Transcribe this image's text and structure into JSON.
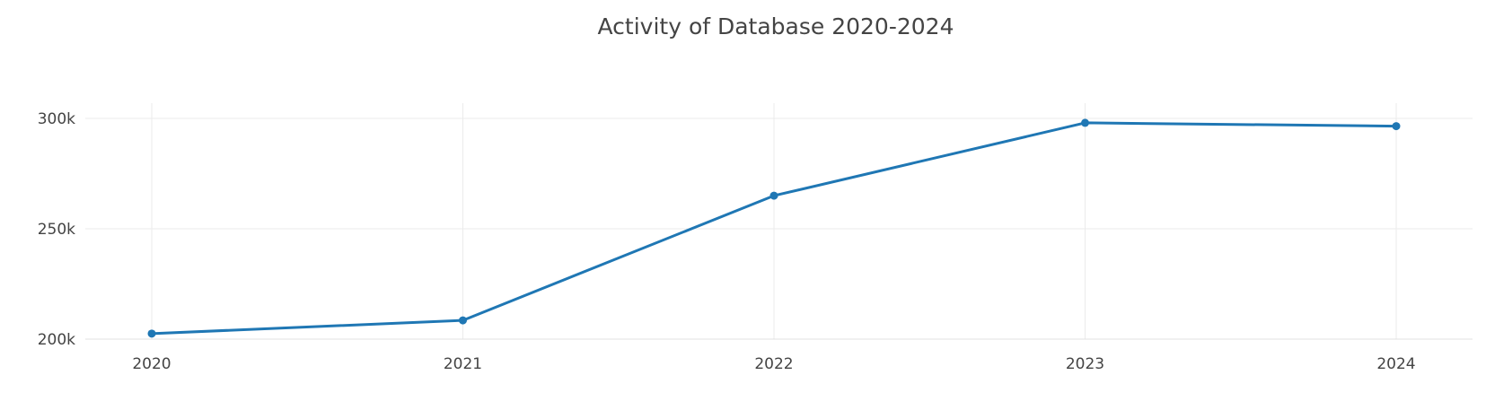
{
  "chart_data": {
    "type": "line",
    "title": "Activity of Database 2020-2024",
    "xlabel": "",
    "ylabel": "",
    "x": [
      "2020",
      "2021",
      "2022",
      "2023",
      "2024"
    ],
    "series": [
      {
        "values": [
          202500,
          208500,
          265000,
          298000,
          296500
        ],
        "color": "#1f77b4"
      }
    ],
    "ylim": [
      200000,
      300000
    ],
    "yticks": [
      200000,
      250000,
      300000
    ],
    "ytick_labels": [
      "200k",
      "250k",
      "300k"
    ],
    "grid": true,
    "legend": "none"
  }
}
